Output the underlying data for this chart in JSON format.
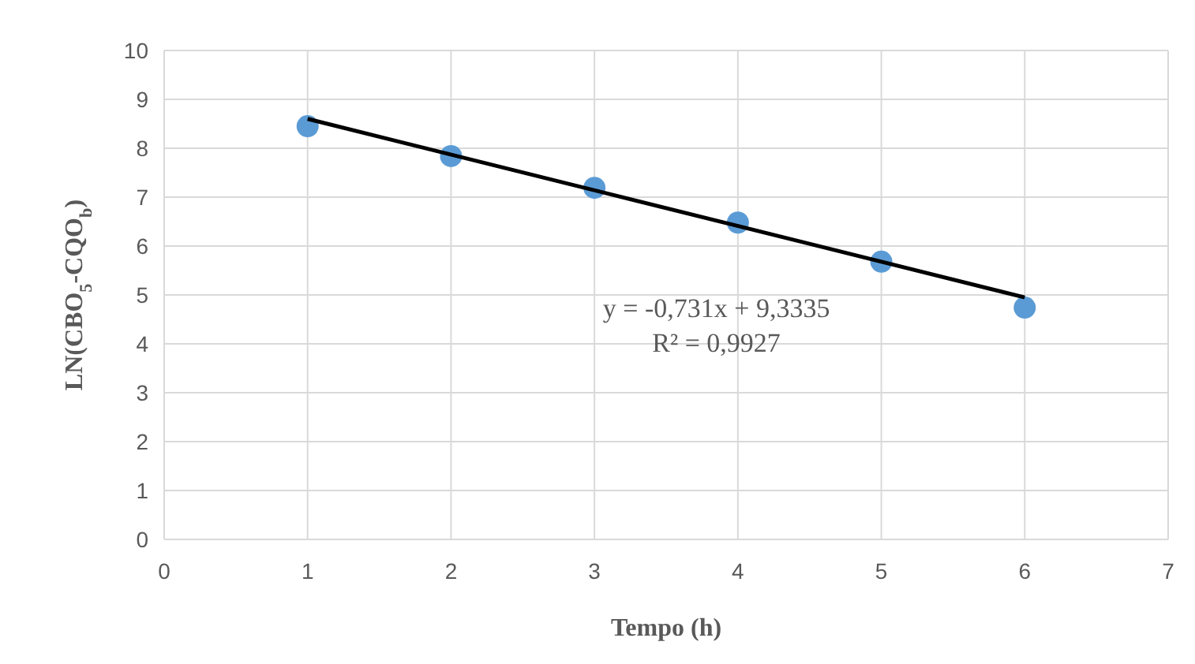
{
  "chart_data": {
    "type": "scatter",
    "xlabel": "Tempo (h)",
    "ylabel": "LN(CBO$_{5}$-CQO$_{b}$)",
    "x": [
      1,
      2,
      3,
      4,
      5,
      6
    ],
    "series": [
      {
        "color": "#5b9bd5",
        "values": [
          8.45,
          7.84,
          7.19,
          6.48,
          5.68,
          4.74
        ],
        "marker": "circle"
      },
      {
        "type": "line",
        "color": "#000000",
        "x": [
          1,
          6
        ],
        "values": [
          8.6,
          4.95
        ],
        "marker": "none",
        "line_style": "solid"
      }
    ],
    "xlim": [
      0,
      7
    ],
    "xticks": [
      0,
      1,
      2,
      3,
      4,
      5,
      6,
      7
    ],
    "ylim": [
      0,
      10
    ],
    "yticks": [
      0,
      1,
      2,
      3,
      4,
      5,
      6,
      7,
      8,
      9,
      10
    ],
    "grid": true,
    "annotations": [
      "y = -0,731x + 9,3335",
      "R² = 0,9927"
    ]
  }
}
